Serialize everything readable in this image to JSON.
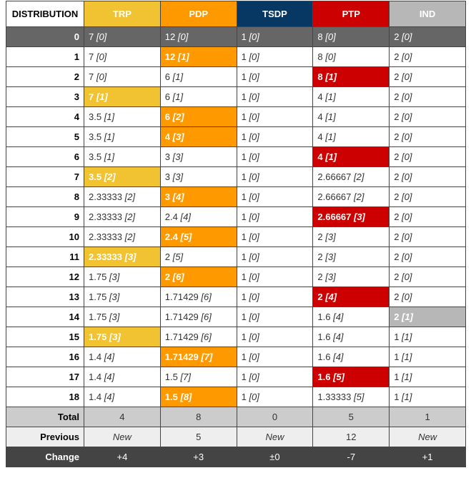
{
  "table": {
    "headers": [
      "DISTRIBUTION",
      "TRP",
      "PDP",
      "TSDP",
      "PTP",
      "IND"
    ],
    "column_colors": [
      "#ffffff",
      "#f1c232",
      "#ff9900",
      "#073763",
      "#cc0000",
      "#b7b7b7"
    ],
    "rows": [
      {
        "label": "0",
        "cells": [
          "7 [0]",
          "12 [0]",
          "1 [0]",
          "8 [0]",
          "2 [0]"
        ]
      },
      {
        "label": "1",
        "cells": [
          "7 [0]",
          "12 [1]",
          "1 [0]",
          "8 [0]",
          "2 [0]"
        ],
        "highlight": 1
      },
      {
        "label": "2",
        "cells": [
          "7 [0]",
          "6 [1]",
          "1 [0]",
          "8 [1]",
          "2 [0]"
        ],
        "highlight": 3
      },
      {
        "label": "3",
        "cells": [
          "7 [1]",
          "6 [1]",
          "1 [0]",
          "4 [1]",
          "2 [0]"
        ],
        "highlight": 0
      },
      {
        "label": "4",
        "cells": [
          "3.5 [1]",
          "6 [2]",
          "1 [0]",
          "4 [1]",
          "2 [0]"
        ],
        "highlight": 1
      },
      {
        "label": "5",
        "cells": [
          "3.5 [1]",
          "4 [3]",
          "1 [0]",
          "4 [1]",
          "2 [0]"
        ],
        "highlight": 1
      },
      {
        "label": "6",
        "cells": [
          "3.5 [1]",
          "3 [3]",
          "1 [0]",
          "4 [1]",
          "2 [0]"
        ],
        "highlight": 3
      },
      {
        "label": "7",
        "cells": [
          "3.5 [2]",
          "3 [3]",
          "1 [0]",
          "2.66667 [2]",
          "2 [0]"
        ],
        "highlight": 0
      },
      {
        "label": "8",
        "cells": [
          "2.33333 [2]",
          "3 [4]",
          "1 [0]",
          "2.66667 [2]",
          "2 [0]"
        ],
        "highlight": 1
      },
      {
        "label": "9",
        "cells": [
          "2.33333 [2]",
          "2.4 [4]",
          "1 [0]",
          "2.66667 [3]",
          "2 [0]"
        ],
        "highlight": 3
      },
      {
        "label": "10",
        "cells": [
          "2.33333 [2]",
          "2.4 [5]",
          "1 [0]",
          "2 [3]",
          "2 [0]"
        ],
        "highlight": 1
      },
      {
        "label": "11",
        "cells": [
          "2.33333 [3]",
          "2 [5]",
          "1 [0]",
          "2 [3]",
          "2 [0]"
        ],
        "highlight": 0
      },
      {
        "label": "12",
        "cells": [
          "1.75 [3]",
          "2 [6]",
          "1 [0]",
          "2 [3]",
          "2 [0]"
        ],
        "highlight": 1
      },
      {
        "label": "13",
        "cells": [
          "1.75 [3]",
          "1.71429 [6]",
          "1 [0]",
          "2 [4]",
          "2 [0]"
        ],
        "highlight": 3
      },
      {
        "label": "14",
        "cells": [
          "1.75 [3]",
          "1.71429 [6]",
          "1 [0]",
          "1.6 [4]",
          "2 [1]"
        ],
        "highlight": 4
      },
      {
        "label": "15",
        "cells": [
          "1.75 [3]",
          "1.71429 [6]",
          "1 [0]",
          "1.6 [4]",
          "1 [1]"
        ],
        "highlight": 0
      },
      {
        "label": "16",
        "cells": [
          "1.4 [4]",
          "1.71429 [7]",
          "1 [0]",
          "1.6 [4]",
          "1 [1]"
        ],
        "highlight": 1
      },
      {
        "label": "17",
        "cells": [
          "1.4 [4]",
          "1.5 [7]",
          "1 [0]",
          "1.6 [5]",
          "1 [1]"
        ],
        "highlight": 3
      },
      {
        "label": "18",
        "cells": [
          "1.4 [4]",
          "1.5 [8]",
          "1 [0]",
          "1.33333 [5]",
          "1 [1]"
        ],
        "highlight": 1
      }
    ],
    "summary": [
      {
        "label": "Total",
        "cells": [
          "4",
          "8",
          "0",
          "5",
          "1"
        ]
      },
      {
        "label": "Previous",
        "cells": [
          "New",
          "5",
          "New",
          "12",
          "New"
        ]
      },
      {
        "label": "Change",
        "cells": [
          "+4",
          "+3",
          "±0",
          "-7",
          "+1"
        ]
      }
    ]
  }
}
